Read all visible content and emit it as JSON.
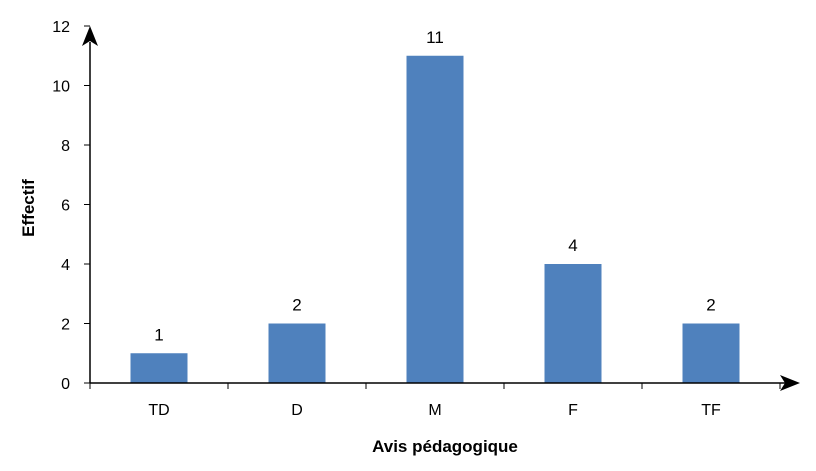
{
  "chart_data": {
    "type": "bar",
    "categories": [
      "TD",
      "D",
      "M",
      "F",
      "TF"
    ],
    "values": [
      1,
      2,
      11,
      4,
      2
    ],
    "data_labels": [
      "1",
      "2",
      "11",
      "4",
      "2"
    ],
    "title": "",
    "xlabel": "Avis pédagogique",
    "ylabel": "Effectif",
    "ylim": [
      0,
      12
    ],
    "yticks": [
      "0",
      "2",
      "4",
      "6",
      "8",
      "10",
      "12"
    ],
    "grid": false,
    "legend": "none",
    "bar_color": "#4f81bd",
    "axis_color": "#000000"
  }
}
